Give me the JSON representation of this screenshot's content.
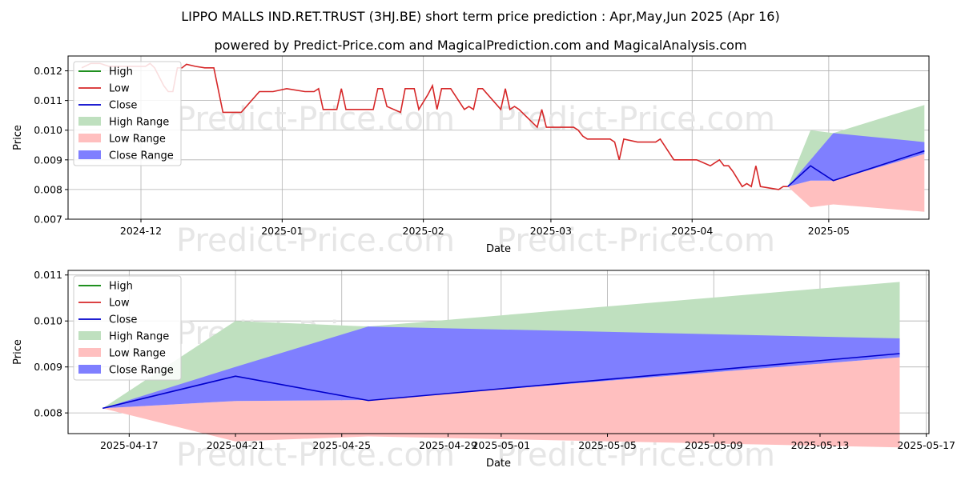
{
  "title_line1": "LIPPO MALLS IND.RET.TRUST (3HJ.BE) short term price prediction : Apr,May,Jun 2025 (Apr 16)",
  "title_line2": "powered by Predict-Price.com and MagicalPrediction.com and MagicalAnalysis.com",
  "watermark": "Predict-Price.com",
  "colors": {
    "high": "#008000",
    "low": "#d62728",
    "close": "#0000cc",
    "high_range": "#bfe0bf",
    "low_range": "#ffbfbf",
    "close_range": "#7f7fff"
  },
  "chart_data": [
    {
      "type": "line",
      "xlabel": "Date",
      "ylabel": "Price",
      "xlim": [
        "2024-11-15",
        "2025-05-23"
      ],
      "ylim": [
        0.007,
        0.0125
      ],
      "yticks": [
        "0.007",
        "0.008",
        "0.009",
        "0.010",
        "0.011",
        "0.012"
      ],
      "xticks": [
        "2024-12",
        "2025-01",
        "2025-02",
        "2025-03",
        "2025-04",
        "2025-05"
      ],
      "grid": true,
      "legend": "top-left",
      "legend_entries": [
        "High",
        "Low",
        "Close",
        "High Range",
        "Low Range",
        "Close Range"
      ],
      "series": [
        {
          "name": "Low",
          "points": [
            [
              "2024-11-18",
              0.0121
            ],
            [
              "2024-11-20",
              0.01225
            ],
            [
              "2024-11-22",
              0.01225
            ],
            [
              "2024-11-24",
              0.01215
            ],
            [
              "2024-11-26",
              0.01215
            ],
            [
              "2024-11-28",
              0.01215
            ],
            [
              "2024-11-30",
              0.01215
            ],
            [
              "2024-12-02",
              0.01215
            ],
            [
              "2024-12-03",
              0.01225
            ],
            [
              "2024-12-04",
              0.0121
            ],
            [
              "2024-12-05",
              0.0118
            ],
            [
              "2024-12-06",
              0.0115
            ],
            [
              "2024-12-07",
              0.0113
            ],
            [
              "2024-12-08",
              0.0113
            ],
            [
              "2024-12-09",
              0.0121
            ],
            [
              "2024-12-10",
              0.0121
            ],
            [
              "2024-12-11",
              0.01222
            ],
            [
              "2024-12-13",
              0.01215
            ],
            [
              "2024-12-15",
              0.0121
            ],
            [
              "2024-12-17",
              0.0121
            ],
            [
              "2024-12-19",
              0.0106
            ],
            [
              "2024-12-23",
              0.0106
            ],
            [
              "2024-12-27",
              0.0113
            ],
            [
              "2024-12-30",
              0.0113
            ],
            [
              "2025-01-02",
              0.0114
            ],
            [
              "2025-01-06",
              0.0113
            ],
            [
              "2025-01-08",
              0.0113
            ],
            [
              "2025-01-09",
              0.0114
            ],
            [
              "2025-01-10",
              0.0107
            ],
            [
              "2025-01-13",
              0.0107
            ],
            [
              "2025-01-14",
              0.0114
            ],
            [
              "2025-01-15",
              0.0107
            ],
            [
              "2025-01-21",
              0.0107
            ],
            [
              "2025-01-22",
              0.0114
            ],
            [
              "2025-01-23",
              0.0114
            ],
            [
              "2025-01-24",
              0.0108
            ],
            [
              "2025-01-27",
              0.0106
            ],
            [
              "2025-01-28",
              0.0114
            ],
            [
              "2025-01-30",
              0.0114
            ],
            [
              "2025-01-31",
              0.0107
            ],
            [
              "2025-02-02",
              0.0112
            ],
            [
              "2025-02-03",
              0.0115
            ],
            [
              "2025-02-04",
              0.0107
            ],
            [
              "2025-02-05",
              0.0114
            ],
            [
              "2025-02-07",
              0.0114
            ],
            [
              "2025-02-10",
              0.0107
            ],
            [
              "2025-02-11",
              0.0108
            ],
            [
              "2025-02-12",
              0.0107
            ],
            [
              "2025-02-13",
              0.0114
            ],
            [
              "2025-02-14",
              0.0114
            ],
            [
              "2025-02-18",
              0.0107
            ],
            [
              "2025-02-19",
              0.0114
            ],
            [
              "2025-02-20",
              0.0107
            ],
            [
              "2025-02-21",
              0.0108
            ],
            [
              "2025-02-22",
              0.0107
            ],
            [
              "2025-02-26",
              0.0101
            ],
            [
              "2025-02-27",
              0.0107
            ],
            [
              "2025-02-28",
              0.0101
            ],
            [
              "2025-03-04",
              0.0101
            ],
            [
              "2025-03-06",
              0.0101
            ],
            [
              "2025-03-07",
              0.01
            ],
            [
              "2025-03-08",
              0.0098
            ],
            [
              "2025-03-09",
              0.0097
            ],
            [
              "2025-03-14",
              0.0097
            ],
            [
              "2025-03-15",
              0.0096
            ],
            [
              "2025-03-16",
              0.009
            ],
            [
              "2025-03-17",
              0.0097
            ],
            [
              "2025-03-20",
              0.0096
            ],
            [
              "2025-03-24",
              0.0096
            ],
            [
              "2025-03-25",
              0.0097
            ],
            [
              "2025-03-28",
              0.009
            ],
            [
              "2025-03-31",
              0.009
            ],
            [
              "2025-04-02",
              0.009
            ],
            [
              "2025-04-05",
              0.0088
            ],
            [
              "2025-04-07",
              0.009
            ],
            [
              "2025-04-08",
              0.0088
            ],
            [
              "2025-04-09",
              0.0088
            ],
            [
              "2025-04-10",
              0.0086
            ],
            [
              "2025-04-12",
              0.0081
            ],
            [
              "2025-04-13",
              0.0082
            ],
            [
              "2025-04-14",
              0.0081
            ],
            [
              "2025-04-15",
              0.0088
            ],
            [
              "2025-04-16",
              0.0081
            ],
            [
              "2025-04-18",
              0.00805
            ],
            [
              "2025-04-20",
              0.008
            ],
            [
              "2025-04-21",
              0.0081
            ],
            [
              "2025-04-22",
              0.0081
            ]
          ]
        },
        {
          "name": "Close",
          "points": [
            [
              "2025-04-22",
              0.0081
            ],
            [
              "2025-04-27",
              0.0088
            ],
            [
              "2025-05-02",
              0.0083
            ],
            [
              "2025-05-22",
              0.0093
            ]
          ]
        },
        {
          "name": "High Range",
          "upper": [
            [
              "2025-04-22",
              0.0081
            ],
            [
              "2025-04-27",
              0.01
            ],
            [
              "2025-05-02",
              0.0099
            ],
            [
              "2025-05-22",
              0.01085
            ]
          ],
          "lower": [
            [
              "2025-04-22",
              0.0081
            ],
            [
              "2025-04-27",
              0.0088
            ],
            [
              "2025-05-02",
              0.0083
            ],
            [
              "2025-05-22",
              0.0093
            ]
          ]
        },
        {
          "name": "Low Range",
          "upper": [
            [
              "2025-04-22",
              0.0081
            ],
            [
              "2025-04-27",
              0.0083
            ],
            [
              "2025-05-02",
              0.0083
            ],
            [
              "2025-05-22",
              0.0092
            ]
          ],
          "lower": [
            [
              "2025-04-22",
              0.0081
            ],
            [
              "2025-04-27",
              0.0074
            ],
            [
              "2025-05-02",
              0.0075
            ],
            [
              "2025-05-22",
              0.00725
            ]
          ]
        },
        {
          "name": "Close Range",
          "upper": [
            [
              "2025-04-22",
              0.0081
            ],
            [
              "2025-04-27",
              0.009
            ],
            [
              "2025-05-02",
              0.0099
            ],
            [
              "2025-05-22",
              0.0096
            ]
          ],
          "lower": [
            [
              "2025-04-22",
              0.0081
            ],
            [
              "2025-04-27",
              0.0083
            ],
            [
              "2025-05-02",
              0.0083
            ],
            [
              "2025-05-22",
              0.0092
            ]
          ]
        }
      ]
    },
    {
      "type": "line",
      "xlabel": "Date",
      "ylabel": "Price",
      "xlim": [
        "2025-04-14.7",
        "2025-05-17.1"
      ],
      "ylim": [
        0.00755,
        0.0111
      ],
      "yticks": [
        "0.008",
        "0.009",
        "0.010",
        "0.011"
      ],
      "xticks": [
        "2025-04-17",
        "2025-04-21",
        "2025-04-25",
        "2025-04-29",
        "2025-05-01",
        "2025-05-05",
        "2025-05-09",
        "2025-05-13",
        "2025-05-17"
      ],
      "grid": true,
      "legend": "top-left",
      "legend_entries": [
        "High",
        "Low",
        "Close",
        "High Range",
        "Low Range",
        "Close Range"
      ],
      "series": [
        {
          "name": "Close",
          "points": [
            [
              "2025-04-16",
              0.0081
            ],
            [
              "2025-04-21",
              0.0088
            ],
            [
              "2025-04-26",
              0.00827
            ],
            [
              "2025-05-16",
              0.00929
            ]
          ]
        },
        {
          "name": "High Range",
          "upper": [
            [
              "2025-04-16",
              0.0081
            ],
            [
              "2025-04-21",
              0.01
            ],
            [
              "2025-04-26",
              0.00988
            ],
            [
              "2025-05-16",
              0.01085
            ]
          ],
          "lower": [
            [
              "2025-04-16",
              0.0081
            ],
            [
              "2025-04-21",
              0.0088
            ],
            [
              "2025-04-26",
              0.00827
            ],
            [
              "2025-05-16",
              0.00929
            ]
          ]
        },
        {
          "name": "Low Range",
          "upper": [
            [
              "2025-04-16",
              0.0081
            ],
            [
              "2025-04-21",
              0.00826
            ],
            [
              "2025-04-26",
              0.00828
            ],
            [
              "2025-05-16",
              0.00921
            ]
          ],
          "lower": [
            [
              "2025-04-16",
              0.0081
            ],
            [
              "2025-04-21",
              0.00738
            ],
            [
              "2025-04-26",
              0.00749
            ],
            [
              "2025-05-16",
              0.00725
            ]
          ]
        },
        {
          "name": "Close Range",
          "upper": [
            [
              "2025-04-16",
              0.0081
            ],
            [
              "2025-04-21",
              0.009
            ],
            [
              "2025-04-26",
              0.00988
            ],
            [
              "2025-05-16",
              0.00962
            ]
          ],
          "lower": [
            [
              "2025-04-16",
              0.0081
            ],
            [
              "2025-04-21",
              0.00826
            ],
            [
              "2025-04-26",
              0.00828
            ],
            [
              "2025-05-16",
              0.00921
            ]
          ]
        }
      ]
    }
  ]
}
